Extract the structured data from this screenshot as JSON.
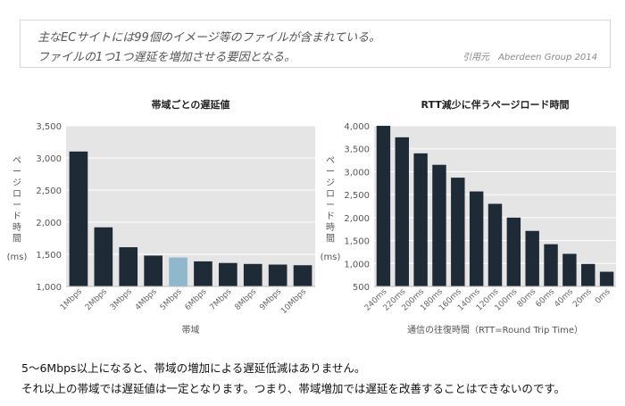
{
  "quote": {
    "line1": "主なECサイトには99個のイメージ等のファイルが含まれている。",
    "line2": "ファイルの1つ1つ遅延を増加させる要因となる。",
    "cite": "引用元　Aberdeen Group 2014"
  },
  "colors": {
    "bar": "#1e2a35",
    "highlight": "#8fb8cc",
    "plot_bg": "#e5e5e5"
  },
  "chart_data": [
    {
      "type": "bar",
      "title": "帯域ごとの遅延値",
      "ylabel": "ページロード時間",
      "yunit": "(ms)",
      "xlabel": "帯域",
      "ylim": [
        1000,
        3500
      ],
      "yticks": [
        "1,000",
        "1,500",
        "2,000",
        "2,500",
        "3,000",
        "3,500"
      ],
      "grid": true,
      "categories": [
        "1Mbps",
        "2Mbps",
        "3Mbps",
        "4Mbps",
        "5Mbps",
        "6Mbps",
        "7Mbps",
        "8Mbps",
        "9Mbps",
        "10Mbps"
      ],
      "values": [
        3100,
        1920,
        1610,
        1480,
        1450,
        1390,
        1365,
        1350,
        1340,
        1330
      ],
      "highlight_index": 4
    },
    {
      "type": "bar",
      "title": "RTT減少に伴うページロード時間",
      "ylabel": "ページロード時間",
      "yunit": "(ms)",
      "xlabel": "通信の往復時間（RTT=Round Trip Time）",
      "ylim": [
        500,
        4000
      ],
      "yticks": [
        "500",
        "1,000",
        "1,500",
        "2,000",
        "2,500",
        "3,000",
        "3,500",
        "4,000"
      ],
      "grid": true,
      "categories": [
        "240ms",
        "220ms",
        "200ms",
        "180ms",
        "160ms",
        "140ms",
        "120ms",
        "100ms",
        "80ms",
        "60ms",
        "40ms",
        "20ms",
        "0ms"
      ],
      "values": [
        4000,
        3750,
        3400,
        3150,
        2870,
        2570,
        2300,
        2000,
        1710,
        1420,
        1210,
        990,
        820
      ]
    }
  ],
  "notes": {
    "line1": "5〜6Mbps以上になると、帯域の増加による遅延低減はありません。",
    "line2": "それ以上の帯域では遅延値は一定となります。つまり、帯域増加では遅延を改善することはできないのです。"
  }
}
